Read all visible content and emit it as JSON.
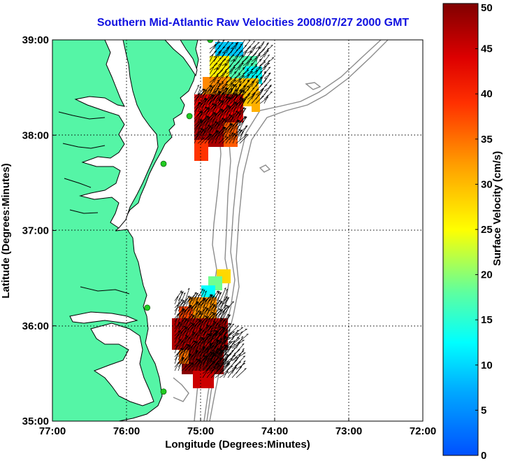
{
  "title": "Southern Mid-Atlantic Raw Velocities 2008/07/27 2000 GMT",
  "x_axis": {
    "label": "Longitude (Degrees:Minutes)",
    "ticks": [
      {
        "value": -77,
        "label": "77:00"
      },
      {
        "value": -76,
        "label": "76:00"
      },
      {
        "value": -75,
        "label": "75:00"
      },
      {
        "value": -74,
        "label": "74:00"
      },
      {
        "value": -73,
        "label": "73:00"
      },
      {
        "value": -72,
        "label": "72:00"
      }
    ]
  },
  "y_axis": {
    "label": "Latitude (Degrees:Minutes)",
    "ticks": [
      {
        "value": 35,
        "label": "35:00"
      },
      {
        "value": 36,
        "label": "36:00"
      },
      {
        "value": 37,
        "label": "37:00"
      },
      {
        "value": 38,
        "label": "38:00"
      },
      {
        "value": 39,
        "label": "39:00"
      }
    ]
  },
  "colorbar": {
    "label": "Surface Velocity (cm/s)",
    "min": 0,
    "max": 50,
    "ticks": [
      "0",
      "5",
      "10",
      "15",
      "20",
      "25",
      "30",
      "35",
      "40",
      "45",
      "50"
    ]
  },
  "colors": {
    "land": "#55f5a6",
    "coast": "#000000",
    "bathymetry": "#8c8c8c",
    "station": "#22cc22",
    "title": "#1010e0"
  },
  "stations": [
    {
      "lon": -74.87,
      "lat": 39.0
    },
    {
      "lon": -75.15,
      "lat": 38.2
    },
    {
      "lon": -75.5,
      "lat": 37.7
    },
    {
      "lon": -75.72,
      "lat": 36.19
    },
    {
      "lon": -75.5,
      "lat": 35.31
    }
  ]
}
